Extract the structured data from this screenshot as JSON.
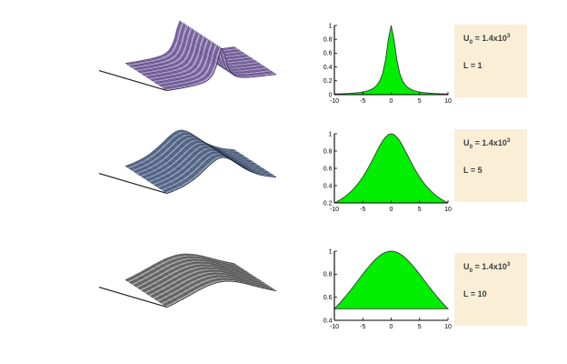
{
  "figure": {
    "background": "#ffffff",
    "param_box_bg": "#faeed7",
    "label_color": "#3f3f3f",
    "axis_color": "#000000",
    "tick_font_px": 7
  },
  "chart_data": [
    {
      "type": "area",
      "title": "",
      "xlabel": "",
      "ylabel": "",
      "x": [
        -10,
        -9.5,
        -9,
        -8.5,
        -8,
        -7.5,
        -7,
        -6.5,
        -6,
        -5.5,
        -5,
        -4.5,
        -4,
        -3.5,
        -3,
        -2.5,
        -2,
        -1.5,
        -1,
        -0.5,
        0,
        0.5,
        1,
        1.5,
        2,
        2.5,
        3,
        3.5,
        4,
        4.5,
        5,
        5.5,
        6,
        6.5,
        7,
        7.5,
        8,
        8.5,
        9,
        9.5,
        10
      ],
      "values": [
        0.0099,
        0.011,
        0.0122,
        0.0137,
        0.0154,
        0.0175,
        0.02,
        0.0231,
        0.027,
        0.032,
        0.0385,
        0.0471,
        0.0588,
        0.0755,
        0.1,
        0.1379,
        0.2,
        0.3077,
        0.5,
        0.8,
        1,
        0.8,
        0.5,
        0.3077,
        0.2,
        0.1379,
        0.1,
        0.0755,
        0.0588,
        0.0471,
        0.0385,
        0.032,
        0.027,
        0.0231,
        0.02,
        0.0175,
        0.0154,
        0.0137,
        0.0122,
        0.011,
        0.0099
      ],
      "xlim": [
        -10,
        10
      ],
      "ylim": [
        0,
        1
      ],
      "baseline": 0,
      "xtick_vals": [
        -10,
        -5,
        0,
        5,
        10
      ],
      "xtick_labels": [
        "-10",
        "-5",
        "0",
        "5",
        "10"
      ],
      "ytick_vals": [
        0,
        0.2,
        0.4,
        0.6,
        0.8,
        1
      ],
      "ytick_labels": [
        "0",
        "0.2",
        "0.4",
        "0.6",
        "0.8",
        "1"
      ],
      "grid": false,
      "legend": "none",
      "fill_color": "#00ee00",
      "line_color": "#3a3a3a",
      "annotation_u0": {
        "base": "U",
        "sub": "0",
        "mid": " = 1.4x10",
        "sup": "3"
      },
      "annotation_L": "L = 1"
    },
    {
      "type": "area",
      "title": "",
      "xlabel": "",
      "ylabel": "",
      "x": [
        -10,
        -9.5,
        -9,
        -8.5,
        -8,
        -7.5,
        -7,
        -6.5,
        -6,
        -5.5,
        -5,
        -4.5,
        -4,
        -3.5,
        -3,
        -2.5,
        -2,
        -1.5,
        -1,
        -0.5,
        0,
        0.5,
        1,
        1.5,
        2,
        2.5,
        3,
        3.5,
        4,
        4.5,
        5,
        5.5,
        6,
        6.5,
        7,
        7.5,
        8,
        8.5,
        9,
        9.5,
        10
      ],
      "values": [
        0.2,
        0.2169,
        0.2358,
        0.2571,
        0.2809,
        0.3077,
        0.3378,
        0.3717,
        0.4098,
        0.4525,
        0.5,
        0.5525,
        0.6098,
        0.6711,
        0.7353,
        0.8,
        0.8621,
        0.9174,
        0.9615,
        0.9901,
        1,
        0.9901,
        0.9615,
        0.9174,
        0.8621,
        0.8,
        0.7353,
        0.6711,
        0.6098,
        0.5525,
        0.5,
        0.4525,
        0.4098,
        0.3717,
        0.3378,
        0.3077,
        0.2809,
        0.2571,
        0.2358,
        0.2169,
        0.2
      ],
      "xlim": [
        -10,
        10
      ],
      "ylim": [
        0.2,
        1
      ],
      "baseline": 0.2,
      "xtick_vals": [
        -10,
        -5,
        0,
        5,
        10
      ],
      "xtick_labels": [
        "-10",
        "-5",
        "0",
        "5",
        "10"
      ],
      "ytick_vals": [
        0.2,
        0.4,
        0.6,
        0.8,
        1
      ],
      "ytick_labels": [
        "0.2",
        "0.4",
        "0.6",
        "0.8",
        "1"
      ],
      "grid": false,
      "legend": "none",
      "fill_color": "#00ee00",
      "line_color": "#3a3a3a",
      "annotation_u0": {
        "base": "U",
        "sub": "0",
        "mid": " = 1.4x10",
        "sup": "3"
      },
      "annotation_L": "L = 5"
    },
    {
      "type": "area",
      "title": "",
      "xlabel": "",
      "ylabel": "",
      "x": [
        -10,
        -9.5,
        -9,
        -8.5,
        -8,
        -7.5,
        -7,
        -6.5,
        -6,
        -5.5,
        -5,
        -4.5,
        -4,
        -3.5,
        -3,
        -2.5,
        -2,
        -1.5,
        -1,
        -0.5,
        0,
        0.5,
        1,
        1.5,
        2,
        2.5,
        3,
        3.5,
        4,
        4.5,
        5,
        5.5,
        6,
        6.5,
        7,
        7.5,
        8,
        8.5,
        9,
        9.5,
        10
      ],
      "values": [
        0.5,
        0.5256,
        0.5525,
        0.5806,
        0.6098,
        0.64,
        0.6711,
        0.7029,
        0.7353,
        0.7678,
        0.8,
        0.8316,
        0.8621,
        0.8909,
        0.9174,
        0.9412,
        0.9615,
        0.978,
        0.9901,
        0.9975,
        1,
        0.9975,
        0.9901,
        0.978,
        0.9615,
        0.9412,
        0.9174,
        0.8909,
        0.8621,
        0.8316,
        0.8,
        0.7678,
        0.7353,
        0.7029,
        0.6711,
        0.64,
        0.6098,
        0.5806,
        0.5525,
        0.5256,
        0.5
      ],
      "xlim": [
        -10,
        10
      ],
      "ylim": [
        0.4,
        1
      ],
      "baseline": 0.5,
      "xtick_vals": [
        -10,
        -5,
        0,
        5,
        10
      ],
      "xtick_labels": [
        "-10",
        "-5",
        "0",
        "5",
        "10"
      ],
      "ytick_vals": [
        0.4,
        0.6,
        0.8,
        1
      ],
      "ytick_labels": [
        "0.4",
        "0.6",
        "0.8",
        "1"
      ],
      "grid": false,
      "legend": "none",
      "fill_color": "#00ee00",
      "line_color": "#3a3a3a",
      "annotation_u0": {
        "base": "U",
        "sub": "0",
        "mid": " = 1.4x10",
        "sup": "3"
      },
      "annotation_L": "L = 10"
    }
  ],
  "surfaces": [
    {
      "name": "surface-L1",
      "palette": {
        "face": "#b2a0d2",
        "face_alt": "#7a66a0",
        "mesh": "#261b40",
        "axis_line": "#222222"
      }
    },
    {
      "name": "surface-L5",
      "palette": {
        "face": "#8a9cba",
        "face_alt": "#5a6b8c",
        "mesh": "#121a2c",
        "axis_line": "#222222"
      }
    },
    {
      "name": "surface-L10",
      "palette": {
        "face": "#a8a8a8",
        "face_alt": "#6b6b6b",
        "mesh": "#1a1a1a",
        "axis_line": "#222222"
      }
    }
  ]
}
